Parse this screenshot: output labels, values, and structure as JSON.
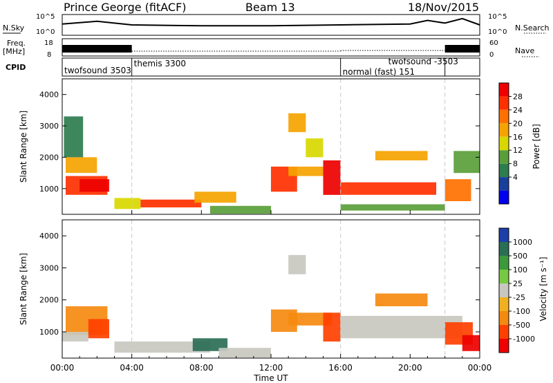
{
  "header": {
    "station": "Prince George (fitACF)",
    "beam": "Beam 13",
    "date": "18/Nov/2015"
  },
  "noise_panel": {
    "left_label": "N.Sky",
    "right_label": "N.Search",
    "left_ticks": [
      "10^5",
      "10^0"
    ],
    "right_ticks": [
      "10^5",
      "10^0"
    ]
  },
  "freq_panel": {
    "left_label_1": "Freq.",
    "left_label_2": "[MHz]",
    "left_ticks": [
      "18",
      "8"
    ],
    "right_label": "Nave",
    "right_ticks": [
      "60",
      "0"
    ]
  },
  "cpid_panel": {
    "label": "CPID",
    "programs": [
      {
        "name": "twofsound 3503",
        "start": 0.0
      },
      {
        "name": "themis 3300",
        "start": 4.0
      },
      {
        "name": "normal (fast) 151",
        "start": 16.0
      },
      {
        "name": "twofsound -3503",
        "start": 22.0
      }
    ],
    "changes_at_hours": [
      4.0,
      16.0,
      22.0
    ]
  },
  "power_panel": {
    "ylabel": "Slant Range [km]",
    "yticks": [
      "1000",
      "2000",
      "3000",
      "4000"
    ],
    "colorbar_label": "Power [dB]",
    "colorbar_ticks": [
      "28",
      "24",
      "20",
      "16",
      "12",
      "8",
      "4"
    ],
    "colors": [
      "#0000ee",
      "#1a3f9a",
      "#2e7d4f",
      "#5a9e3a",
      "#d8d800",
      "#f5a300",
      "#ff7000",
      "#ff3000",
      "#ee0000"
    ]
  },
  "velocity_panel": {
    "ylabel": "Slant Range [km]",
    "yticks": [
      "1000",
      "2000",
      "3000",
      "4000"
    ],
    "colorbar_label": "Velocity [m s⁻¹]",
    "colorbar_ticks": [
      "1000",
      "500",
      "100",
      "25",
      "-25",
      "-100",
      "-500",
      "-1000"
    ],
    "colors": [
      "#1c3fa8",
      "#2a6e55",
      "#3c9a3c",
      "#77c843",
      "#c8c8c0",
      "#f0b020",
      "#f58a10",
      "#ff4000",
      "#ee0000"
    ]
  },
  "x_axis": {
    "label": "Time UT",
    "ticks": [
      "00:00",
      "04:00",
      "08:00",
      "12:00",
      "16:00",
      "20:00",
      "00:00"
    ]
  },
  "chart_data": {
    "type": "heatmap",
    "title": "Prince George (fitACF)",
    "subtitle": "Beam 13 · 18/Nov/2015",
    "xlabel": "Time UT",
    "ylabel": "Slant Range [km]",
    "x_range_hours": [
      0,
      24
    ],
    "y_range_km": [
      180,
      4500
    ],
    "series": [
      {
        "name": "Power [dB]",
        "regions": [
          {
            "t": [
              0.2,
              2.6
            ],
            "r": [
              800,
              1400
            ],
            "value": 24
          },
          {
            "t": [
              1.0,
              2.7
            ],
            "r": [
              900,
              1300
            ],
            "value": 28
          },
          {
            "t": [
              0.2,
              2.0
            ],
            "r": [
              1500,
              2000
            ],
            "value": 16
          },
          {
            "t": [
              0.1,
              1.2
            ],
            "r": [
              2000,
              3300
            ],
            "value": 8
          },
          {
            "t": [
              3.0,
              4.5
            ],
            "r": [
              350,
              700
            ],
            "value": 14
          },
          {
            "t": [
              4.5,
              8.0
            ],
            "r": [
              400,
              650
            ],
            "value": 26
          },
          {
            "t": [
              7.6,
              10.0
            ],
            "r": [
              550,
              900
            ],
            "value": 18
          },
          {
            "t": [
              8.5,
              12.0
            ],
            "r": [
              200,
              450
            ],
            "value": 12
          },
          {
            "t": [
              12.0,
              13.5
            ],
            "r": [
              900,
              1700
            ],
            "value": 24
          },
          {
            "t": [
              13.0,
              15.0
            ],
            "r": [
              1400,
              1700
            ],
            "value": 18
          },
          {
            "t": [
              13.0,
              14.0
            ],
            "r": [
              2800,
              3400
            ],
            "value": 16
          },
          {
            "t": [
              14.0,
              15.0
            ],
            "r": [
              2000,
              2600
            ],
            "value": 14
          },
          {
            "t": [
              15.0,
              16.0
            ],
            "r": [
              800,
              1900
            ],
            "value": 28
          },
          {
            "t": [
              16.0,
              21.5
            ],
            "r": [
              800,
              1200
            ],
            "value": 26
          },
          {
            "t": [
              18.0,
              21.0
            ],
            "r": [
              1900,
              2200
            ],
            "value": 18
          },
          {
            "t": [
              16.0,
              22.0
            ],
            "r": [
              300,
              500
            ],
            "value": 10
          },
          {
            "t": [
              22.0,
              23.5
            ],
            "r": [
              600,
              1300
            ],
            "value": 22
          },
          {
            "t": [
              22.5,
              24.0
            ],
            "r": [
              1500,
              2200
            ],
            "value": 12
          }
        ]
      },
      {
        "name": "Velocity [m s⁻¹]",
        "regions": [
          {
            "t": [
              0.2,
              2.6
            ],
            "r": [
              900,
              1800
            ],
            "value": -100
          },
          {
            "t": [
              0.0,
              1.5
            ],
            "r": [
              700,
              1000
            ],
            "value": 0
          },
          {
            "t": [
              1.5,
              2.7
            ],
            "r": [
              800,
              1400
            ],
            "value": -500
          },
          {
            "t": [
              3.0,
              8.5
            ],
            "r": [
              350,
              700
            ],
            "value": 0
          },
          {
            "t": [
              7.5,
              9.5
            ],
            "r": [
              400,
              800
            ],
            "value": 100
          },
          {
            "t": [
              9.0,
              12.0
            ],
            "r": [
              200,
              500
            ],
            "value": 0
          },
          {
            "t": [
              12.0,
              13.5
            ],
            "r": [
              1000,
              1700
            ],
            "value": -100
          },
          {
            "t": [
              13.0,
              15.5
            ],
            "r": [
              1200,
              1600
            ],
            "value": -100
          },
          {
            "t": [
              13.0,
              14.0
            ],
            "r": [
              2800,
              3400
            ],
            "value": 0
          },
          {
            "t": [
              15.0,
              16.0
            ],
            "r": [
              700,
              1600
            ],
            "value": -500
          },
          {
            "t": [
              16.0,
              23.0
            ],
            "r": [
              800,
              1500
            ],
            "value": 0
          },
          {
            "t": [
              18.0,
              21.0
            ],
            "r": [
              1800,
              2200
            ],
            "value": -100
          },
          {
            "t": [
              22.0,
              23.6
            ],
            "r": [
              600,
              1300
            ],
            "value": -500
          },
          {
            "t": [
              23.0,
              24.0
            ],
            "r": [
              400,
              900
            ],
            "value": -1000
          }
        ]
      }
    ],
    "noise_sky_profile": [
      {
        "t": 0,
        "v": 0.55
      },
      {
        "t": 2,
        "v": 0.7
      },
      {
        "t": 4,
        "v": 0.5
      },
      {
        "t": 8,
        "v": 0.45
      },
      {
        "t": 12,
        "v": 0.45
      },
      {
        "t": 16,
        "v": 0.5
      },
      {
        "t": 20,
        "v": 0.55
      },
      {
        "t": 21,
        "v": 0.75
      },
      {
        "t": 22,
        "v": 0.6
      },
      {
        "t": 23,
        "v": 0.85
      },
      {
        "t": 24,
        "v": 0.5
      }
    ],
    "nave_profile": [
      {
        "t": 0,
        "v": 0.5
      },
      {
        "t": 4,
        "v": 0.15
      },
      {
        "t": 16,
        "v": 0.2
      },
      {
        "t": 22,
        "v": 0.5
      },
      {
        "t": 24,
        "v": 0.5
      }
    ]
  }
}
